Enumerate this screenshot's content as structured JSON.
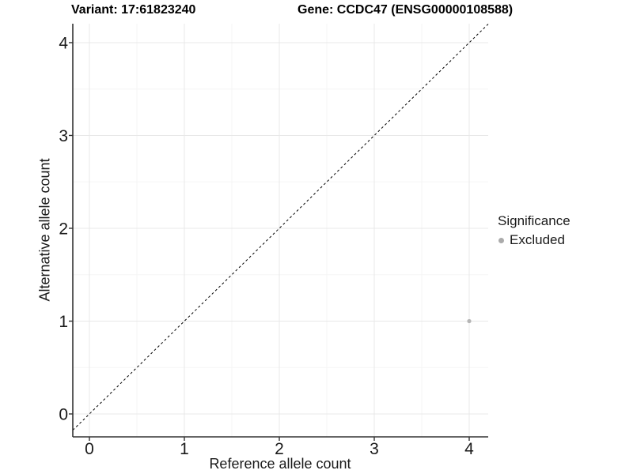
{
  "figure": {
    "title_left": "Variant: 17:61823240",
    "title_right": "Gene: CCDC47 (ENSG00000108588)"
  },
  "chart_data": {
    "type": "scatter",
    "xlabel": "Reference allele count",
    "ylabel": "Alternative allele count",
    "x_ticks": [
      0,
      1,
      2,
      3,
      4
    ],
    "y_ticks": [
      0,
      1,
      2,
      3,
      4
    ],
    "x_minor_ticks": [
      0.5,
      1.5,
      2.5,
      3.5
    ],
    "y_minor_ticks": [
      0.5,
      1.5,
      2.5,
      3.5
    ],
    "xlim": [
      -0.175,
      4.2
    ],
    "ylim": [
      -0.247,
      4.204
    ],
    "grid": true,
    "reference_line": {
      "kind": "identity",
      "slope": 1,
      "intercept": 0,
      "style": "dashed"
    },
    "series": [
      {
        "name": "Excluded",
        "points": [
          {
            "x": 4,
            "y": 1
          }
        ]
      }
    ],
    "legend": {
      "title": "Significance",
      "position": "right",
      "entries": [
        {
          "label": "Excluded",
          "color": "#ababab"
        }
      ]
    }
  },
  "colors": {
    "point": "#b5b5b5",
    "legend_dot": "#ababab",
    "grid_major": "#e8e8e8",
    "grid_minor": "#f5f5f5",
    "axis_line": "#333333",
    "tick_mark": "#333333",
    "tick_text": "#1a1a1a",
    "dashed_line": "#000000",
    "background": "#ffffff"
  }
}
